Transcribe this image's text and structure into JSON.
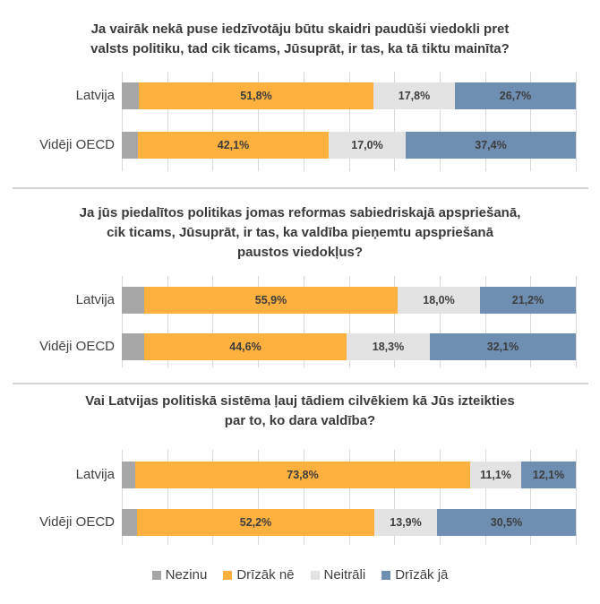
{
  "chart_data": [
    {
      "type": "bar",
      "orientation": "horizontal",
      "stacked": "100%",
      "title": "Ja vairāk nekā puse iedzīvotāju būtu skaidri paudūši viedokli pret valsts politiku, tad cik ticams, Jūsuprāt, ir tas, ka tā tiktu mainīta?",
      "title_lines": [
        "Ja vairāk nekā puse iedzīvotāju būtu skaidri paudūši viedokli pret",
        "valsts politiku, tad cik ticams, Jūsuprāt, ir tas, ka tā tiktu mainīta?"
      ],
      "categories": [
        "Latvija",
        "Vidēji OECD"
      ],
      "series": [
        {
          "name": "Nezinu",
          "values": [
            3.7,
            3.5
          ],
          "labels": [
            "",
            ""
          ]
        },
        {
          "name": "Drīzāk nē",
          "values": [
            51.8,
            42.1
          ],
          "labels": [
            "51,8%",
            "42,1%"
          ]
        },
        {
          "name": "Neitrāli",
          "values": [
            17.8,
            17.0
          ],
          "labels": [
            "17,8%",
            "17,0%"
          ]
        },
        {
          "name": "Drīzāk jā",
          "values": [
            26.7,
            37.4
          ],
          "labels": [
            "26,7%",
            "37,4%"
          ]
        }
      ],
      "xlim": [
        0,
        100
      ],
      "grid": true,
      "gridlines_step": 10
    },
    {
      "type": "bar",
      "orientation": "horizontal",
      "stacked": "100%",
      "title": "Ja jūs piedalītos politikas jomas reformas sabiedriskajā apspriešanā, cik ticams, Jūsuprāt, ir tas, ka valdība pieņemtu apspriešanā paustos viedokļus?",
      "title_lines": [
        "Ja jūs piedalītos politikas jomas reformas sabiedriskajā apspriešanā,",
        "cik ticams, Jūsuprāt, ir tas, ka valdība pieņemtu apspriešanā",
        "paustos viedokļus?"
      ],
      "categories": [
        "Latvija",
        "Vidēji OECD"
      ],
      "series": [
        {
          "name": "Nezinu",
          "values": [
            4.9,
            5.0
          ],
          "labels": [
            "",
            ""
          ]
        },
        {
          "name": "Drīzāk nē",
          "values": [
            55.9,
            44.6
          ],
          "labels": [
            "55,9%",
            "44,6%"
          ]
        },
        {
          "name": "Neitrāli",
          "values": [
            18.0,
            18.3
          ],
          "labels": [
            "18,0%",
            "18,3%"
          ]
        },
        {
          "name": "Drīzāk jā",
          "values": [
            21.2,
            32.1
          ],
          "labels": [
            "21,2%",
            "32,1%"
          ]
        }
      ],
      "xlim": [
        0,
        100
      ],
      "grid": true,
      "gridlines_step": 10
    },
    {
      "type": "bar",
      "orientation": "horizontal",
      "stacked": "100%",
      "title": "Vai Latvijas politiskā sistēma ļauj tādiem cilvēkiem kā Jūs izteikties par to, ko dara valdība?",
      "title_lines": [
        "Vai Latvijas politiskā sistēma ļauj tādiem cilvēkiem kā Jūs izteikties",
        "par to, ko dara valdība?"
      ],
      "categories": [
        "Latvija",
        "Vidēji OECD"
      ],
      "series": [
        {
          "name": "Nezinu",
          "values": [
            3.0,
            3.4
          ],
          "labels": [
            "",
            ""
          ]
        },
        {
          "name": "Drīzāk nē",
          "values": [
            73.8,
            52.2
          ],
          "labels": [
            "73,8%",
            "52,2%"
          ]
        },
        {
          "name": "Neitrāli",
          "values": [
            11.1,
            13.9
          ],
          "labels": [
            "11,1%",
            "13,9%"
          ]
        },
        {
          "name": "Drīzāk jā",
          "values": [
            12.1,
            30.5
          ],
          "labels": [
            "12,1%",
            "30,5%"
          ]
        }
      ],
      "xlim": [
        0,
        100
      ],
      "grid": true,
      "gridlines_step": 10
    }
  ],
  "legend": {
    "placement": "bottom",
    "items": [
      {
        "name": "Nezinu",
        "color": "#a6a6a6"
      },
      {
        "name": "Drīzāk nē",
        "color": "#ffb140"
      },
      {
        "name": "Neitrāli",
        "color": "#e3e3e3"
      },
      {
        "name": "Drīzāk jā",
        "color": "#6e8fb2"
      }
    ]
  },
  "colors": {
    "Nezinu": "#a6a6a6",
    "Drīzāk nē": "#ffb140",
    "Neitrāli": "#e3e3e3",
    "Drīzāk jā": "#6e8fb2",
    "gridline": "#d9d9d9",
    "divider": "#d4d4d4"
  }
}
